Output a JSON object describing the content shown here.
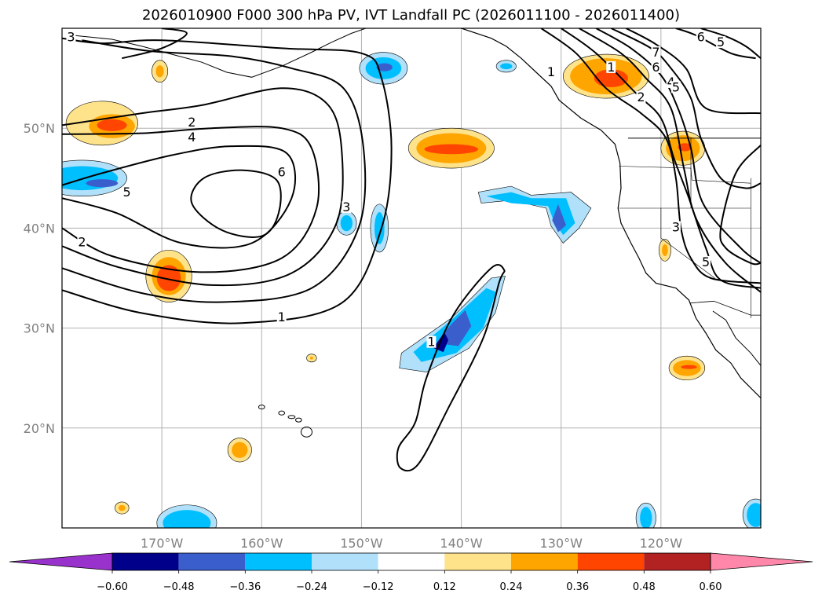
{
  "chart_data": {
    "type": "contour-map",
    "title": "2026010900 F000 300 hPa PV, IVT Landfall PC (2026011100 - 2026011400)",
    "map": {
      "lon_range": [
        -180,
        -110
      ],
      "lat_range": [
        10,
        60
      ],
      "grid": true,
      "lon_ticks": [
        {
          "value": -170,
          "label": "170°W"
        },
        {
          "value": -160,
          "label": "160°W"
        },
        {
          "value": -150,
          "label": "150°W"
        },
        {
          "value": -140,
          "label": "140°W"
        },
        {
          "value": -130,
          "label": "130°W"
        },
        {
          "value": -120,
          "label": "120°W"
        }
      ],
      "lat_ticks": [
        {
          "value": 50,
          "label": "50°N"
        },
        {
          "value": 40,
          "label": "40°N"
        },
        {
          "value": 30,
          "label": "30°N"
        },
        {
          "value": 20,
          "label": "20°N"
        }
      ]
    },
    "pv_contour_levels": [
      1,
      2,
      3,
      4,
      5,
      6,
      7
    ],
    "pv_contour_labels": [
      {
        "text": "3",
        "lon": -179.1,
        "lat": 59
      },
      {
        "text": "2",
        "lon": -167,
        "lat": 50.5
      },
      {
        "text": "4",
        "lon": -167,
        "lat": 49
      },
      {
        "text": "6",
        "lon": -158,
        "lat": 45.5
      },
      {
        "text": "5",
        "lon": -173.5,
        "lat": 43.5
      },
      {
        "text": "2",
        "lon": -178,
        "lat": 38.5
      },
      {
        "text": "3",
        "lon": -151.5,
        "lat": 42
      },
      {
        "text": "1",
        "lon": -158,
        "lat": 31
      },
      {
        "text": "1",
        "lon": -143,
        "lat": 28.5
      },
      {
        "text": "1",
        "lon": -131,
        "lat": 55.5
      },
      {
        "text": "1",
        "lon": -125,
        "lat": 56
      },
      {
        "text": "7",
        "lon": -120.5,
        "lat": 57.5
      },
      {
        "text": "6",
        "lon": -120.5,
        "lat": 56
      },
      {
        "text": "4",
        "lon": -119,
        "lat": 54.5
      },
      {
        "text": "5",
        "lon": -118.5,
        "lat": 54
      },
      {
        "text": "2",
        "lon": -122,
        "lat": 53
      },
      {
        "text": "6",
        "lon": -116,
        "lat": 59
      },
      {
        "text": "5",
        "lon": -114,
        "lat": 58.5
      },
      {
        "text": "3",
        "lon": -118.5,
        "lat": 40
      },
      {
        "text": "5",
        "lon": -115.5,
        "lat": 36.5
      }
    ],
    "colorbar": {
      "ticks": [
        -0.6,
        -0.48,
        -0.36,
        -0.24,
        -0.12,
        0.12,
        0.24,
        0.36,
        0.48,
        0.6
      ],
      "tick_labels": [
        "−0.60",
        "−0.48",
        "−0.36",
        "−0.24",
        "−0.12",
        "0.12",
        "0.24",
        "0.36",
        "0.48",
        "0.60"
      ],
      "colors": [
        "#9932cc",
        "#00008b",
        "#3a5fcd",
        "#00bfff",
        "#b0e0fa",
        "#ffffff",
        "#ffe38a",
        "#ffa500",
        "#ff4500",
        "#b22222",
        "#ff88aa"
      ],
      "extend": "both"
    }
  }
}
